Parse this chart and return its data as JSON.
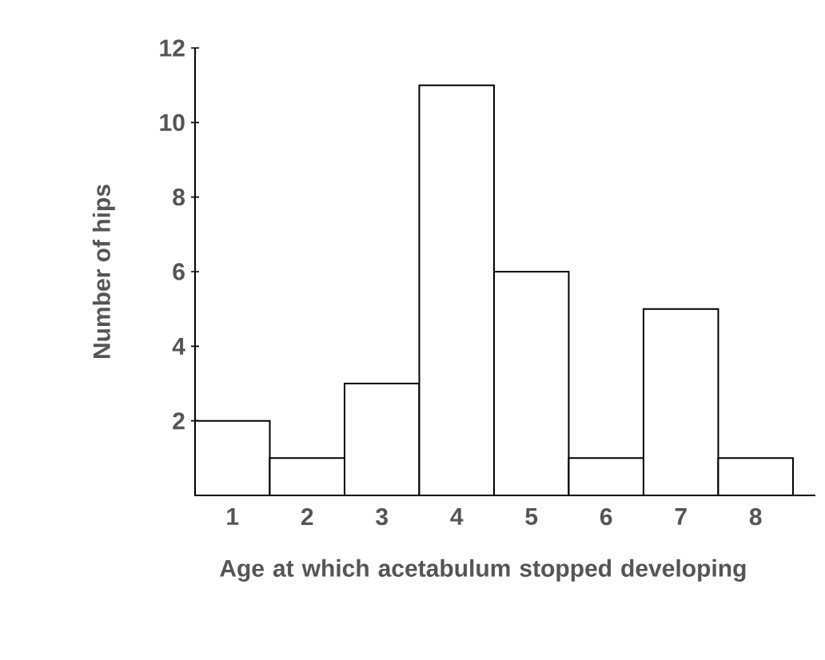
{
  "chart_data": {
    "type": "bar",
    "xlabel": "Age at which acetabulum stopped developing",
    "ylabel": "Number of hips",
    "categories": [
      "1",
      "2",
      "3",
      "4",
      "5",
      "6",
      "7",
      "8"
    ],
    "values": [
      2,
      1,
      3,
      11,
      6,
      1,
      5,
      1
    ],
    "color": "#ffffff",
    "ylim": [
      0,
      12
    ],
    "yticks": [
      2,
      4,
      6,
      8,
      10,
      12
    ],
    "grid": false
  }
}
